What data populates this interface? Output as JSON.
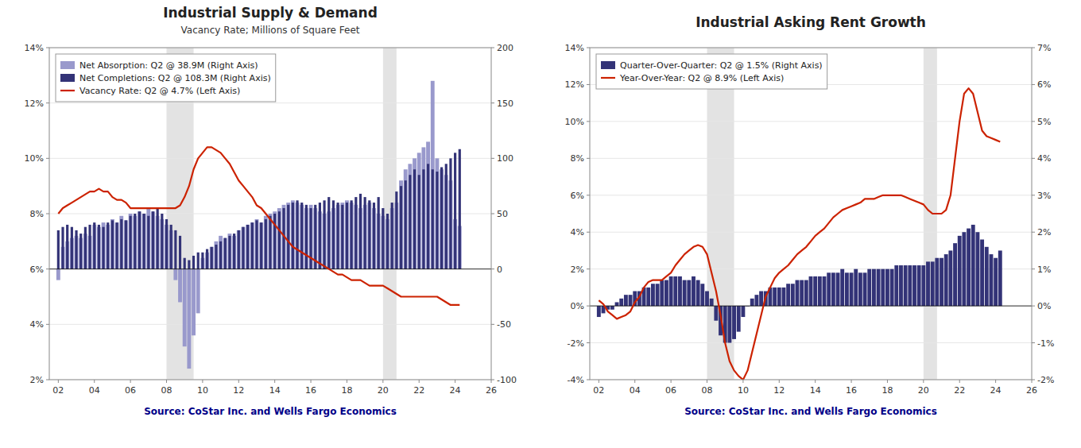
{
  "chart_data": [
    {
      "type": "bar",
      "title": "Industrial Supply & Demand",
      "subtitle": "Vacancy Rate; Millions of Square Feet",
      "annotations": [
        "Source: CoStar Inc. and Wells Fargo Economics"
      ],
      "x": [
        2002.0,
        2002.25,
        2002.5,
        2002.75,
        2003.0,
        2003.25,
        2003.5,
        2003.75,
        2004.0,
        2004.25,
        2004.5,
        2004.75,
        2005.0,
        2005.25,
        2005.5,
        2005.75,
        2006.0,
        2006.25,
        2006.5,
        2006.75,
        2007.0,
        2007.25,
        2007.5,
        2007.75,
        2008.0,
        2008.25,
        2008.5,
        2008.75,
        2009.0,
        2009.25,
        2009.5,
        2009.75,
        2010.0,
        2010.25,
        2010.5,
        2010.75,
        2011.0,
        2011.25,
        2011.5,
        2011.75,
        2012.0,
        2012.25,
        2012.5,
        2012.75,
        2013.0,
        2013.25,
        2013.5,
        2013.75,
        2014.0,
        2014.25,
        2014.5,
        2014.75,
        2015.0,
        2015.25,
        2015.5,
        2015.75,
        2016.0,
        2016.25,
        2016.5,
        2016.75,
        2017.0,
        2017.25,
        2017.5,
        2017.75,
        2018.0,
        2018.25,
        2018.5,
        2018.75,
        2019.0,
        2019.25,
        2019.5,
        2019.75,
        2020.0,
        2020.25,
        2020.5,
        2020.75,
        2021.0,
        2021.25,
        2021.5,
        2021.75,
        2022.0,
        2022.25,
        2022.5,
        2022.75,
        2023.0,
        2023.25,
        2023.5,
        2023.75,
        2024.0,
        2024.25
      ],
      "series": [
        {
          "name": "Net Absorption: Q2 @ 38.9M (Right Axis)",
          "type": "bar",
          "axis": "y2",
          "color": "#9999cc",
          "values": [
            -10,
            20,
            25,
            28,
            30,
            28,
            32,
            30,
            40,
            38,
            42,
            40,
            45,
            42,
            48,
            44,
            50,
            48,
            52,
            50,
            55,
            52,
            48,
            45,
            40,
            35,
            -10,
            -30,
            -70,
            -90,
            -60,
            -40,
            10,
            15,
            20,
            25,
            30,
            28,
            32,
            30,
            35,
            38,
            40,
            42,
            45,
            42,
            48,
            50,
            52,
            55,
            58,
            60,
            62,
            60,
            58,
            55,
            58,
            55,
            52,
            50,
            52,
            55,
            58,
            60,
            62,
            60,
            58,
            55,
            58,
            60,
            55,
            50,
            48,
            45,
            55,
            60,
            80,
            90,
            95,
            100,
            105,
            110,
            115,
            170,
            100,
            90,
            85,
            80,
            45,
            38.9
          ]
        },
        {
          "name": "Net Completions: Q2 @ 108.3M (Right Axis)",
          "type": "bar",
          "axis": "y2",
          "color": "#333377",
          "values": [
            35,
            38,
            40,
            38,
            35,
            32,
            38,
            40,
            42,
            40,
            38,
            42,
            44,
            42,
            45,
            44,
            48,
            50,
            52,
            50,
            48,
            52,
            55,
            50,
            45,
            40,
            35,
            30,
            10,
            8,
            12,
            15,
            15,
            18,
            20,
            22,
            25,
            28,
            30,
            32,
            35,
            38,
            40,
            42,
            44,
            42,
            45,
            48,
            50,
            52,
            55,
            58,
            60,
            62,
            60,
            58,
            55,
            58,
            60,
            62,
            65,
            62,
            60,
            58,
            60,
            62,
            65,
            68,
            65,
            62,
            60,
            65,
            55,
            50,
            60,
            70,
            75,
            80,
            85,
            90,
            85,
            90,
            95,
            90,
            88,
            92,
            95,
            100,
            105,
            108.3
          ]
        },
        {
          "name": "Vacancy Rate: Q2 @ 4.7% (Left Axis)",
          "type": "line",
          "color": "#cc2200",
          "values": [
            0.08,
            0.082,
            0.083,
            0.084,
            0.085,
            0.086,
            0.087,
            0.088,
            0.088,
            0.089,
            0.088,
            0.088,
            0.086,
            0.085,
            0.085,
            0.084,
            0.082,
            0.082,
            0.082,
            0.082,
            0.082,
            0.082,
            0.082,
            0.082,
            0.082,
            0.082,
            0.082,
            0.083,
            0.086,
            0.09,
            0.096,
            0.1,
            0.102,
            0.104,
            0.104,
            0.103,
            0.102,
            0.1,
            0.098,
            0.095,
            0.092,
            0.09,
            0.088,
            0.086,
            0.083,
            0.082,
            0.08,
            0.078,
            0.076,
            0.074,
            0.072,
            0.07,
            0.068,
            0.067,
            0.066,
            0.065,
            0.064,
            0.063,
            0.062,
            0.061,
            0.06,
            0.059,
            0.058,
            0.058,
            0.057,
            0.056,
            0.056,
            0.056,
            0.055,
            0.054,
            0.054,
            0.054,
            0.054,
            0.053,
            0.052,
            0.051,
            0.05,
            0.05,
            0.05,
            0.05,
            0.05,
            0.05,
            0.05,
            0.05,
            0.05,
            0.049,
            0.048,
            0.047,
            0.047,
            0.047
          ]
        }
      ],
      "shaded_ranges": [
        [
          2008.0,
          2009.5
        ],
        [
          2020.0,
          2020.75
        ]
      ],
      "xlim": [
        2001.5,
        2026
      ],
      "xticks": [
        {
          "value": 2002,
          "label": "02"
        },
        {
          "value": 2004,
          "label": "04"
        },
        {
          "value": 2006,
          "label": "06"
        },
        {
          "value": 2008,
          "label": "08"
        },
        {
          "value": 2010,
          "label": "10"
        },
        {
          "value": 2012,
          "label": "12"
        },
        {
          "value": 2014,
          "label": "14"
        },
        {
          "value": 2016,
          "label": "16"
        },
        {
          "value": 2018,
          "label": "18"
        },
        {
          "value": 2020,
          "label": "20"
        },
        {
          "value": 2022,
          "label": "22"
        },
        {
          "value": 2024,
          "label": "24"
        },
        {
          "value": 2026,
          "label": "26"
        }
      ],
      "ylim": [
        0.02,
        0.14
      ],
      "yticks": [
        {
          "value": 0.02,
          "label": "2%"
        },
        {
          "value": 0.04,
          "label": "4%"
        },
        {
          "value": 0.06,
          "label": "6%"
        },
        {
          "value": 0.08,
          "label": "8%"
        },
        {
          "value": 0.1,
          "label": "10%"
        },
        {
          "value": 0.12,
          "label": "12%"
        },
        {
          "value": 0.14,
          "label": "14%"
        }
      ],
      "y2lim": [
        -100,
        200
      ],
      "y2ticks": [
        -100,
        -50,
        0,
        50,
        100,
        150,
        200
      ],
      "grid": true,
      "legend": "upper-left"
    },
    {
      "type": "bar",
      "title": "Industrial Asking Rent Growth",
      "annotations": [
        "Source: CoStar Inc. and Wells Fargo Economics"
      ],
      "x": [
        2002.0,
        2002.25,
        2002.5,
        2002.75,
        2003.0,
        2003.25,
        2003.5,
        2003.75,
        2004.0,
        2004.25,
        2004.5,
        2004.75,
        2005.0,
        2005.25,
        2005.5,
        2005.75,
        2006.0,
        2006.25,
        2006.5,
        2006.75,
        2007.0,
        2007.25,
        2007.5,
        2007.75,
        2008.0,
        2008.25,
        2008.5,
        2008.75,
        2009.0,
        2009.25,
        2009.5,
        2009.75,
        2010.0,
        2010.25,
        2010.5,
        2010.75,
        2011.0,
        2011.25,
        2011.5,
        2011.75,
        2012.0,
        2012.25,
        2012.5,
        2012.75,
        2013.0,
        2013.25,
        2013.5,
        2013.75,
        2014.0,
        2014.25,
        2014.5,
        2014.75,
        2015.0,
        2015.25,
        2015.5,
        2015.75,
        2016.0,
        2016.25,
        2016.5,
        2016.75,
        2017.0,
        2017.25,
        2017.5,
        2017.75,
        2018.0,
        2018.25,
        2018.5,
        2018.75,
        2019.0,
        2019.25,
        2019.5,
        2019.75,
        2020.0,
        2020.25,
        2020.5,
        2020.75,
        2021.0,
        2021.25,
        2021.5,
        2021.75,
        2022.0,
        2022.25,
        2022.5,
        2022.75,
        2023.0,
        2023.25,
        2023.5,
        2023.75,
        2024.0,
        2024.25
      ],
      "series": [
        {
          "name": "Quarter-Over-Quarter: Q2 @ 1.5% (Right Axis)",
          "type": "bar",
          "axis": "y2",
          "color": "#333377",
          "values": [
            -0.003,
            -0.002,
            -0.001,
            -0.001,
            0.001,
            0.002,
            0.003,
            0.003,
            0.004,
            0.004,
            0.005,
            0.005,
            0.006,
            0.006,
            0.007,
            0.007,
            0.008,
            0.008,
            0.008,
            0.007,
            0.007,
            0.008,
            0.007,
            0.006,
            0.004,
            0.002,
            -0.004,
            -0.008,
            -0.01,
            -0.01,
            -0.009,
            -0.007,
            -0.003,
            0.0,
            0.002,
            0.003,
            0.004,
            0.004,
            0.005,
            0.005,
            0.005,
            0.005,
            0.006,
            0.006,
            0.007,
            0.007,
            0.007,
            0.008,
            0.008,
            0.008,
            0.008,
            0.009,
            0.009,
            0.009,
            0.01,
            0.009,
            0.009,
            0.01,
            0.009,
            0.009,
            0.01,
            0.01,
            0.01,
            0.01,
            0.01,
            0.01,
            0.011,
            0.011,
            0.011,
            0.011,
            0.011,
            0.011,
            0.011,
            0.012,
            0.012,
            0.013,
            0.013,
            0.014,
            0.015,
            0.017,
            0.019,
            0.02,
            0.021,
            0.022,
            0.02,
            0.018,
            0.016,
            0.014,
            0.013,
            0.015
          ]
        },
        {
          "name": "Year-Over-Year: Q2 @ 8.9% (Left Axis)",
          "type": "line",
          "color": "#cc2200",
          "values": [
            0.003,
            0.001,
            -0.003,
            -0.005,
            -0.007,
            -0.006,
            -0.005,
            -0.003,
            0.002,
            0.005,
            0.01,
            0.013,
            0.014,
            0.014,
            0.014,
            0.016,
            0.018,
            0.022,
            0.025,
            0.028,
            0.03,
            0.032,
            0.033,
            0.032,
            0.028,
            0.018,
            0.008,
            -0.005,
            -0.02,
            -0.03,
            -0.035,
            -0.038,
            -0.04,
            -0.035,
            -0.025,
            -0.015,
            -0.005,
            0.005,
            0.01,
            0.015,
            0.018,
            0.02,
            0.022,
            0.025,
            0.028,
            0.03,
            0.032,
            0.035,
            0.038,
            0.04,
            0.042,
            0.045,
            0.048,
            0.05,
            0.052,
            0.053,
            0.054,
            0.055,
            0.056,
            0.058,
            0.058,
            0.058,
            0.059,
            0.06,
            0.06,
            0.06,
            0.06,
            0.06,
            0.059,
            0.058,
            0.057,
            0.056,
            0.055,
            0.052,
            0.05,
            0.05,
            0.05,
            0.052,
            0.06,
            0.08,
            0.1,
            0.115,
            0.118,
            0.115,
            0.105,
            0.095,
            0.092,
            0.091,
            0.09,
            0.089
          ]
        }
      ],
      "shaded_ranges": [
        [
          2008.0,
          2009.5
        ],
        [
          2020.0,
          2020.75
        ]
      ],
      "xlim": [
        2001.5,
        2026
      ],
      "xticks": [
        {
          "value": 2002,
          "label": "02"
        },
        {
          "value": 2004,
          "label": "04"
        },
        {
          "value": 2006,
          "label": "06"
        },
        {
          "value": 2008,
          "label": "08"
        },
        {
          "value": 2010,
          "label": "10"
        },
        {
          "value": 2012,
          "label": "12"
        },
        {
          "value": 2014,
          "label": "14"
        },
        {
          "value": 2016,
          "label": "16"
        },
        {
          "value": 2018,
          "label": "18"
        },
        {
          "value": 2020,
          "label": "20"
        },
        {
          "value": 2022,
          "label": "22"
        },
        {
          "value": 2024,
          "label": "24"
        },
        {
          "value": 2026,
          "label": "26"
        }
      ],
      "ylim": [
        -0.04,
        0.14
      ],
      "yticks": [
        {
          "value": -0.04,
          "label": "-4%"
        },
        {
          "value": -0.02,
          "label": "-2%"
        },
        {
          "value": 0.0,
          "label": "0%"
        },
        {
          "value": 0.02,
          "label": "2%"
        },
        {
          "value": 0.04,
          "label": "4%"
        },
        {
          "value": 0.06,
          "label": "6%"
        },
        {
          "value": 0.08,
          "label": "8%"
        },
        {
          "value": 0.1,
          "label": "10%"
        },
        {
          "value": 0.12,
          "label": "12%"
        },
        {
          "value": 0.14,
          "label": "14%"
        }
      ],
      "y2lim": [
        -0.02,
        0.07
      ],
      "y2ticks": [
        {
          "value": -0.02,
          "label": "-2%"
        },
        {
          "value": -0.01,
          "label": "-1%"
        },
        {
          "value": 0.0,
          "label": "0%"
        },
        {
          "value": 0.01,
          "label": "1%"
        },
        {
          "value": 0.02,
          "label": "2%"
        },
        {
          "value": 0.03,
          "label": "3%"
        },
        {
          "value": 0.04,
          "label": "4%"
        },
        {
          "value": 0.05,
          "label": "5%"
        },
        {
          "value": 0.06,
          "label": "6%"
        },
        {
          "value": 0.07,
          "label": "7%"
        }
      ],
      "grid": true,
      "legend": "upper-left"
    }
  ]
}
